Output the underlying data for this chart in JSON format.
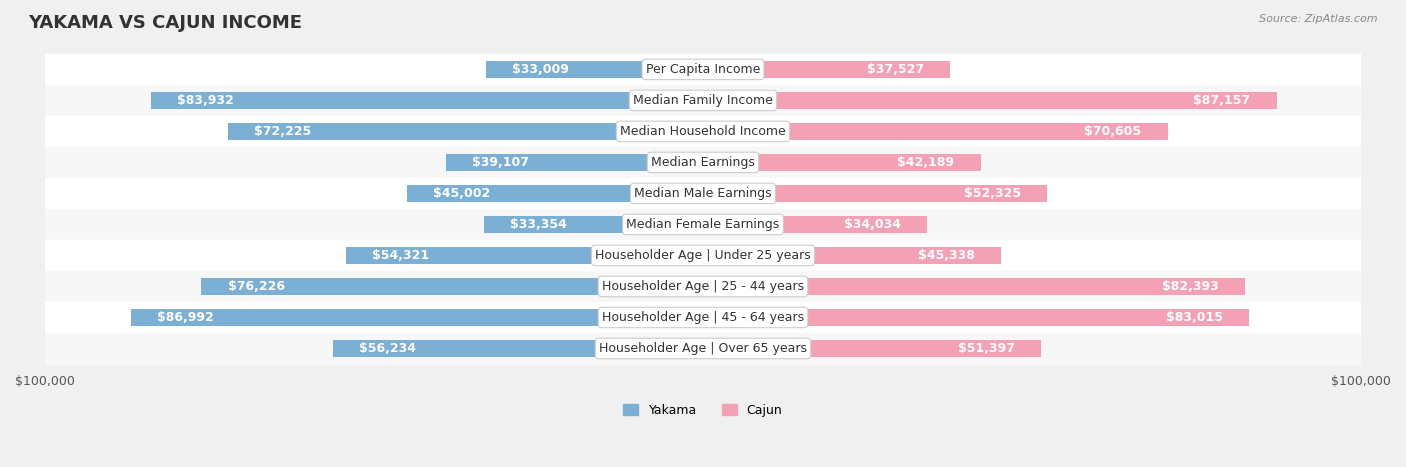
{
  "title": "YAKAMA VS CAJUN INCOME",
  "source": "Source: ZipAtlas.com",
  "categories": [
    "Per Capita Income",
    "Median Family Income",
    "Median Household Income",
    "Median Earnings",
    "Median Male Earnings",
    "Median Female Earnings",
    "Householder Age | Under 25 years",
    "Householder Age | 25 - 44 years",
    "Householder Age | 45 - 64 years",
    "Householder Age | Over 65 years"
  ],
  "yakama_values": [
    33009,
    83932,
    72225,
    39107,
    45002,
    33354,
    54321,
    76226,
    86992,
    56234
  ],
  "cajun_values": [
    37527,
    87157,
    70605,
    42189,
    52325,
    34034,
    45338,
    82393,
    83015,
    51397
  ],
  "yakama_color": "#7bafd4",
  "cajun_color": "#f4a0b5",
  "yakama_label_color_inside": "#ffffff",
  "cajun_label_color_inside": "#ffffff",
  "label_color_outside": "#555555",
  "max_value": 100000,
  "background_color": "#f0f0f0",
  "row_bg_color": "#f7f7f7",
  "bar_height": 0.55,
  "title_fontsize": 13,
  "label_fontsize": 9,
  "category_fontsize": 9,
  "axis_label_fontsize": 9
}
